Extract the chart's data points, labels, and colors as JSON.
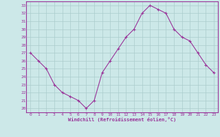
{
  "x": [
    0,
    1,
    2,
    3,
    4,
    5,
    6,
    7,
    8,
    9,
    10,
    11,
    12,
    13,
    14,
    15,
    16,
    17,
    18,
    19,
    20,
    21,
    22,
    23
  ],
  "y": [
    27,
    26,
    25,
    23,
    22,
    21.5,
    21,
    20,
    21,
    24.5,
    26,
    27.5,
    29,
    30,
    32,
    33,
    32.5,
    32,
    30,
    29,
    28.5,
    27,
    25.5,
    24.5
  ],
  "line_color": "#993399",
  "marker_color": "#993399",
  "bg_color": "#cce8e8",
  "grid_color": "#aacccc",
  "xlabel": "Windchill (Refroidissement éolien,°C)",
  "xlim": [
    -0.5,
    23.5
  ],
  "ylim": [
    19.5,
    33.5
  ],
  "yticks": [
    20,
    21,
    22,
    23,
    24,
    25,
    26,
    27,
    28,
    29,
    30,
    31,
    32,
    33
  ],
  "xticks": [
    0,
    1,
    2,
    3,
    4,
    5,
    6,
    7,
    8,
    9,
    10,
    11,
    12,
    13,
    14,
    15,
    16,
    17,
    18,
    19,
    20,
    21,
    22,
    23
  ]
}
